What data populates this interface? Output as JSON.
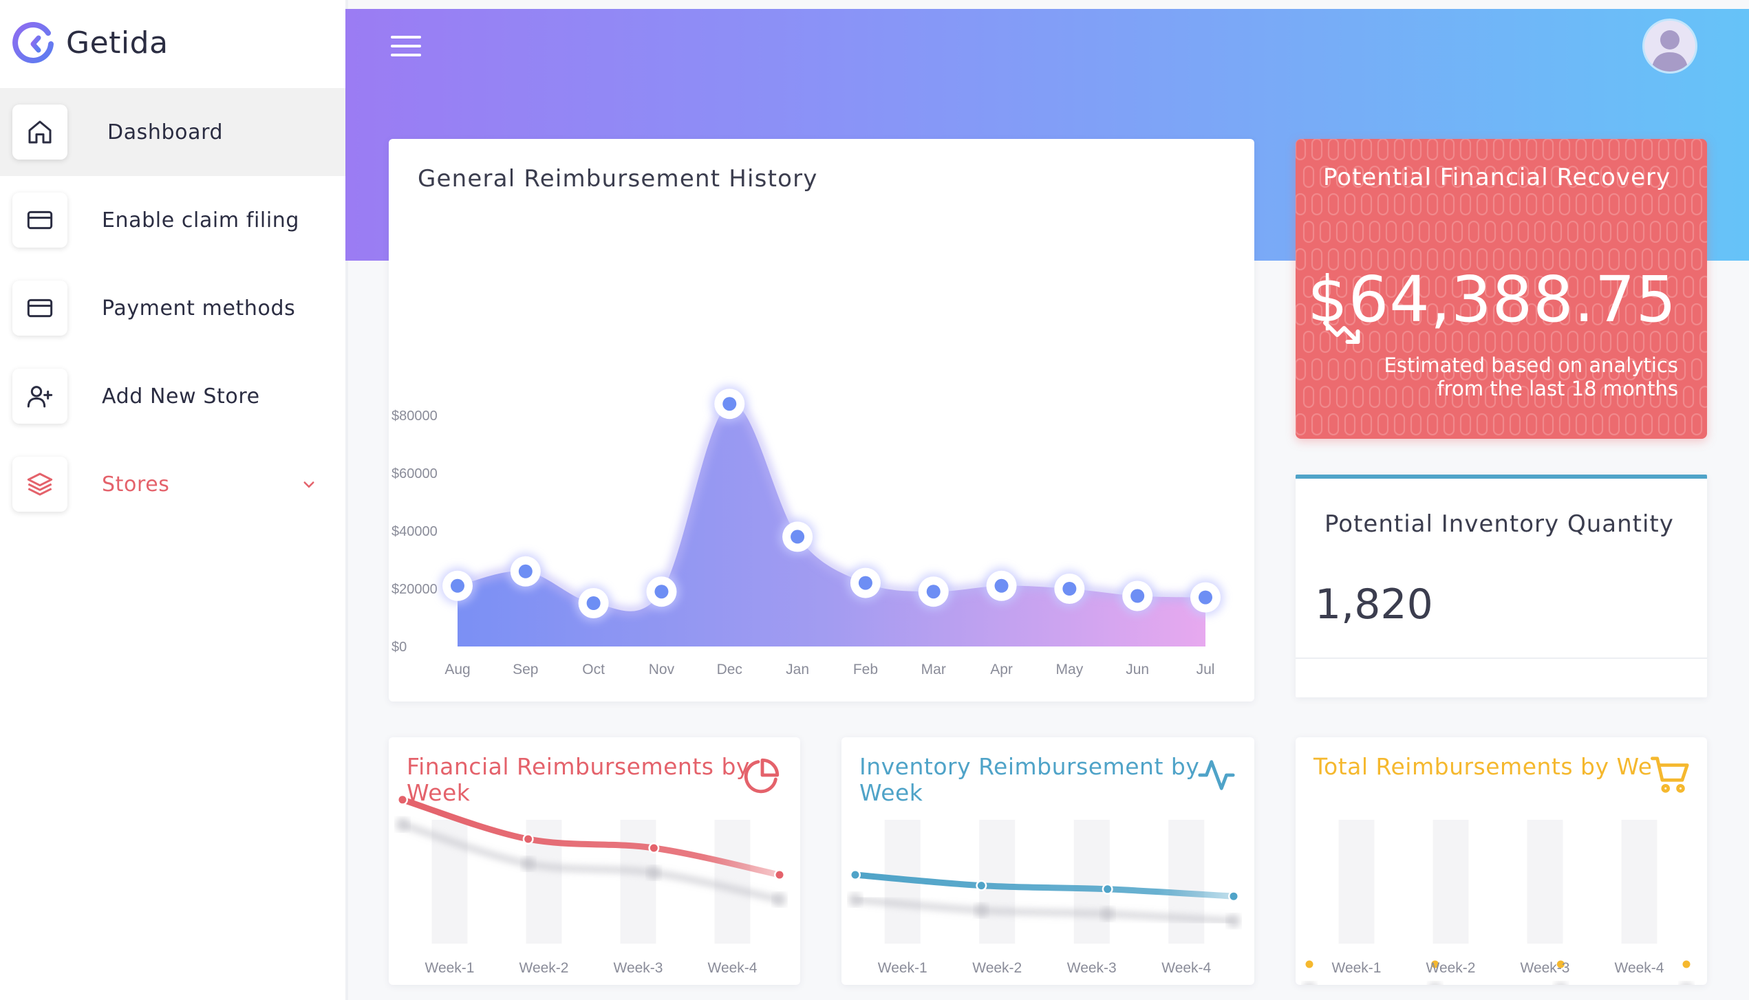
{
  "app": {
    "name": "Getida",
    "colors": {
      "brand": "#6c63ff",
      "accent_red": "#ec6b6f",
      "accent_blue": "#4fa3c8",
      "accent_yellow": "#f5b82e"
    }
  },
  "sidebar": {
    "items": [
      {
        "label": "Dashboard",
        "icon": "home-icon",
        "active": true
      },
      {
        "label": "Enable claim filing",
        "icon": "card-icon"
      },
      {
        "label": "Payment methods",
        "icon": "card-icon"
      },
      {
        "label": "Add New Store",
        "icon": "user-plus-icon"
      },
      {
        "label": "Stores",
        "icon": "layers-icon",
        "expandable": true
      }
    ]
  },
  "header": {
    "menu_icon": "hamburger-icon",
    "avatar_icon": "user-avatar-icon"
  },
  "history": {
    "title": "General Reimbursement History",
    "chart_data": {
      "type": "area",
      "title": "General Reimbursement History",
      "categories": [
        "Aug",
        "Sep",
        "Oct",
        "Nov",
        "Dec",
        "Jan",
        "Feb",
        "Mar",
        "Apr",
        "May",
        "Jun",
        "Jul"
      ],
      "values": [
        21000,
        26000,
        15000,
        19000,
        84000,
        38000,
        22000,
        19000,
        21000,
        20000,
        17500,
        17000
      ],
      "yticks": [
        "$80000",
        "$60000",
        "$40000",
        "$20000",
        "$0"
      ],
      "ylim": [
        0,
        90000
      ],
      "gradient": [
        "#7b90f4",
        "#e7a9ef"
      ]
    }
  },
  "recovery": {
    "title": "Potential Financial Recovery",
    "amount": "$64,388.75",
    "note_line1": "Estimated based on analytics",
    "note_line2": "from the last 18 months",
    "icon": "trending-down-icon"
  },
  "inventory": {
    "title": "Potential Inventory Quantity",
    "value": "1,820"
  },
  "weekly": [
    {
      "title": "Financial Reimbursements by Week",
      "icon": "pie-chart-icon",
      "color": "#e4626b",
      "chart_data": {
        "type": "line",
        "categories": [
          "Week-1",
          "Week-2",
          "Week-3",
          "Week-4"
        ],
        "values": [
          92,
          70,
          65,
          50
        ],
        "ylim": [
          0,
          100
        ]
      }
    },
    {
      "title": "Inventory Reimbursement by Week",
      "icon": "activity-icon",
      "color": "#4fa3c8",
      "chart_data": {
        "type": "line",
        "categories": [
          "Week-1",
          "Week-2",
          "Week-3",
          "Week-4"
        ],
        "values": [
          50,
          44,
          42,
          38
        ],
        "ylim": [
          0,
          100
        ]
      }
    },
    {
      "title": "Total Reimbursements by Week",
      "icon": "cart-icon",
      "color": "#f5b82e",
      "chart_data": {
        "type": "line",
        "categories": [
          "Week-1",
          "Week-2",
          "Week-3",
          "Week-4"
        ],
        "values": [
          0,
          0,
          0,
          0
        ],
        "ylim": [
          0,
          100
        ]
      }
    }
  ]
}
